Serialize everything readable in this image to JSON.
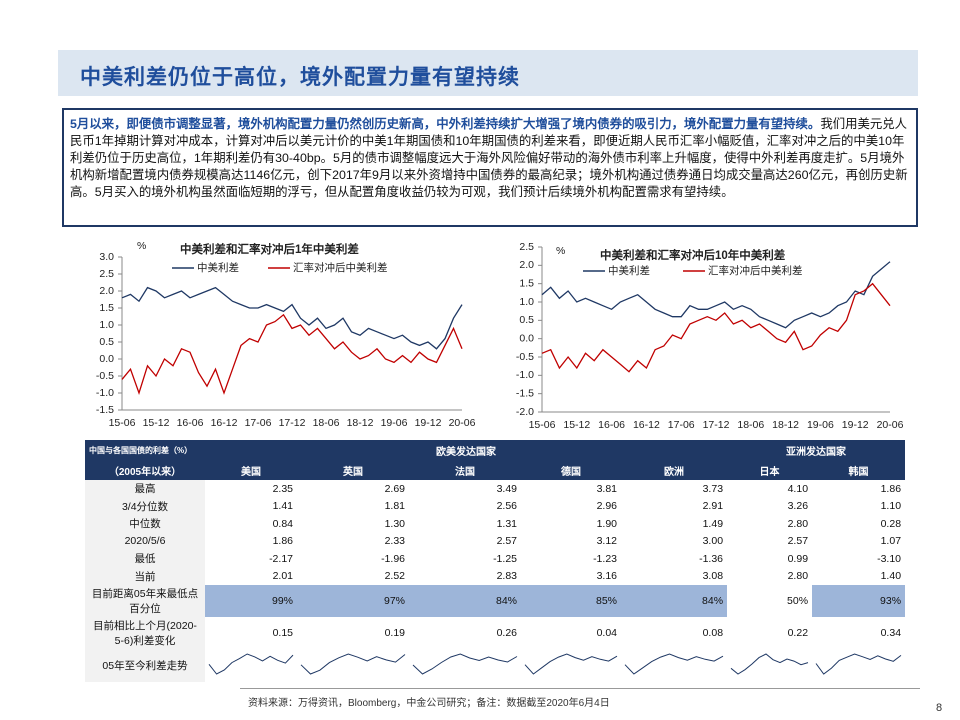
{
  "header": {
    "title": "中美利差仍位于高位，境外配置力量有望持续"
  },
  "summary": {
    "lead": "5月以来，即便债市调整显著，境外机构配置力量仍然创历史新高，中外利差持续扩大增强了境内债券的吸引力，境外配置力量有望持续。",
    "body": "我们用美元兑人民币1年掉期计算对冲成本，计算对冲后以美元计价的中美1年期国债和10年期国债的利差来看，即便近期人民币汇率小幅贬值，汇率对冲之后的中美10年利差仍位于历史高位，1年期利差仍有30-40bp。5月的债市调整幅度远大于海外风险偏好带动的海外债市利率上升幅度，使得中外利差再度走扩。5月境外机构新增配置境内债券规模高达1146亿元，创下2017年9月以来外资增持中国债券的最高纪录；境外机构通过债券通日均成交量高达260亿元，再创历史新高。5月买入的境外机构虽然面临短期的浮亏，但从配置角度收益仍较为可观，我们预计后续境外机构配置需求有望持续。"
  },
  "chart_data": [
    {
      "type": "line",
      "title": "中美利差和汇率对冲后1年中美利差",
      "y_unit": "%",
      "categories": [
        "15-06",
        null,
        null,
        null,
        "15-12",
        null,
        null,
        null,
        "16-06",
        null,
        null,
        null,
        "16-12",
        null,
        null,
        null,
        "17-06",
        null,
        null,
        null,
        "17-12",
        null,
        null,
        null,
        "18-06",
        null,
        null,
        null,
        "18-12",
        null,
        null,
        null,
        "19-06",
        null,
        null,
        null,
        "19-12",
        null,
        null,
        null,
        "20-06"
      ],
      "series": [
        {
          "name": "中美利差",
          "color": "#1f3864",
          "values": [
            1.8,
            1.9,
            1.7,
            2.1,
            2.0,
            1.8,
            1.9,
            2.0,
            1.8,
            1.9,
            2.0,
            2.1,
            1.9,
            1.7,
            1.6,
            1.5,
            1.5,
            1.6,
            1.5,
            1.4,
            1.6,
            1.2,
            1.0,
            1.2,
            0.9,
            1.0,
            1.2,
            0.8,
            0.7,
            0.9,
            0.8,
            0.7,
            0.6,
            0.7,
            0.5,
            0.4,
            0.5,
            0.3,
            0.6,
            1.2,
            1.6
          ]
        },
        {
          "name": "汇率对冲后中美利差",
          "color": "#c00000",
          "values": [
            -0.6,
            -0.3,
            -1.0,
            -0.2,
            -0.5,
            0.0,
            -0.2,
            0.3,
            0.2,
            -0.4,
            -0.8,
            -0.3,
            -1.0,
            -0.3,
            0.4,
            0.6,
            0.5,
            1.0,
            1.1,
            1.3,
            0.9,
            1.0,
            0.7,
            0.9,
            0.6,
            0.3,
            0.5,
            0.2,
            0.0,
            0.1,
            0.3,
            0.0,
            -0.1,
            0.1,
            -0.1,
            0.2,
            0.0,
            -0.1,
            0.4,
            0.9,
            0.3
          ]
        }
      ],
      "ylim": [
        -1.5,
        3
      ],
      "yticks": [
        -1.5,
        {
          "value": -1,
          "label": "-1.0"
        },
        -0.5,
        {
          "value": 0,
          "label": "0.0"
        },
        0.5,
        {
          "value": 1,
          "label": "1.0"
        },
        1.5,
        {
          "value": 2,
          "label": "2.0"
        },
        2.5,
        {
          "value": 3,
          "label": "3.0"
        }
      ]
    },
    {
      "type": "line",
      "title": "中美利差和汇率对冲后10年中美利差",
      "y_unit": "%",
      "categories": [
        "15-06",
        null,
        null,
        null,
        "15-12",
        null,
        null,
        null,
        "16-06",
        null,
        null,
        null,
        "16-12",
        null,
        null,
        null,
        "17-06",
        null,
        null,
        null,
        "17-12",
        null,
        null,
        null,
        "18-06",
        null,
        null,
        null,
        "18-12",
        null,
        null,
        null,
        "19-06",
        null,
        null,
        null,
        "19-12",
        null,
        null,
        null,
        "20-06"
      ],
      "series": [
        {
          "name": "中美利差",
          "color": "#1f3864",
          "values": [
            1.2,
            1.4,
            1.1,
            1.3,
            1.0,
            1.1,
            1.0,
            0.9,
            0.8,
            1.0,
            1.1,
            1.2,
            1.0,
            0.8,
            0.7,
            0.6,
            0.6,
            0.9,
            0.8,
            0.8,
            0.9,
            1.0,
            0.8,
            0.9,
            0.8,
            0.6,
            0.5,
            0.4,
            0.3,
            0.5,
            0.6,
            0.7,
            0.6,
            0.7,
            0.9,
            1.0,
            1.3,
            1.2,
            1.7,
            1.9,
            2.1
          ]
        },
        {
          "name": "汇率对冲后中美利差",
          "color": "#c00000",
          "values": [
            -0.4,
            -0.3,
            -0.8,
            -0.5,
            -0.8,
            -0.4,
            -0.6,
            -0.3,
            -0.5,
            -0.7,
            -0.9,
            -0.6,
            -0.8,
            -0.3,
            -0.2,
            0.1,
            0.0,
            0.4,
            0.5,
            0.6,
            0.5,
            0.7,
            0.4,
            0.5,
            0.3,
            0.4,
            0.2,
            0.0,
            -0.1,
            0.2,
            -0.3,
            -0.2,
            0.1,
            0.3,
            0.2,
            0.5,
            1.2,
            1.3,
            1.5,
            1.2,
            0.9
          ]
        }
      ],
      "ylim": [
        -2,
        2.5
      ],
      "yticks": [
        {
          "value": -2,
          "label": "-2.0"
        },
        -1.5,
        {
          "value": -1,
          "label": "-1.0"
        },
        -0.5,
        {
          "value": 0,
          "label": "0.0"
        },
        0.5,
        {
          "value": 1,
          "label": "1.0"
        },
        1.5,
        {
          "value": 2,
          "label": "2.0"
        },
        2.5
      ]
    }
  ],
  "table": {
    "title": "中国与各国国债的利差（%）",
    "period": "（2005年以来）",
    "highlight_color": "#9db5d9",
    "groups": [
      {
        "name": "欧美发达国家",
        "columns": [
          "美国",
          "英国",
          "法国",
          "德国",
          "欧洲"
        ]
      },
      {
        "name": "亚洲发达国家",
        "columns": [
          "日本",
          "韩国"
        ]
      }
    ],
    "rows": [
      {
        "label": "最高",
        "cells": [
          "2.35",
          "2.69",
          "3.49",
          "3.81",
          "3.73",
          "4.10",
          "1.86"
        ]
      },
      {
        "label": "3/4分位数",
        "cells": [
          "1.41",
          "1.81",
          "2.56",
          "2.96",
          "2.91",
          "3.26",
          "1.10"
        ]
      },
      {
        "label": "中位数",
        "cells": [
          "0.84",
          "1.30",
          "1.31",
          "1.90",
          "1.49",
          "2.80",
          "0.28"
        ]
      },
      {
        "label": "2020/5/6",
        "cells": [
          "1.86",
          "2.33",
          "2.57",
          "3.12",
          "3.00",
          "2.57",
          "1.07"
        ]
      },
      {
        "label": "最低",
        "cells": [
          "-2.17",
          "-1.96",
          "-1.25",
          "-1.23",
          "-1.36",
          "0.99",
          "-3.10"
        ]
      },
      {
        "label": "当前",
        "cells": [
          "2.01",
          "2.52",
          "2.83",
          "3.16",
          "3.08",
          "2.80",
          "1.40"
        ]
      },
      {
        "label": "目前距离05年来最低点百分位",
        "cells": [
          "99%",
          "97%",
          "84%",
          "85%",
          "84%",
          "50%",
          "93%"
        ],
        "highlighted": [
          true,
          true,
          true,
          true,
          true,
          false,
          true
        ]
      },
      {
        "label": "目前相比上个月(2020-5-6)利差变化",
        "cells": [
          "0.15",
          "0.19",
          "0.26",
          "0.04",
          "0.08",
          "0.22",
          "0.34"
        ]
      }
    ],
    "trend": {
      "label": "05年至今利差走势",
      "color": "#1f3864",
      "sparklines": [
        [
          0.2,
          -1.5,
          -0.8,
          0.5,
          1.2,
          2.0,
          1.5,
          0.8,
          1.6,
          0.9,
          0.4,
          1.8
        ],
        [
          0.5,
          -1.2,
          -0.5,
          0.9,
          1.8,
          2.5,
          1.9,
          1.2,
          2.0,
          1.4,
          1.0,
          2.4
        ],
        [
          1.0,
          -0.8,
          0.2,
          1.5,
          2.6,
          3.2,
          2.4,
          1.9,
          2.6,
          2.0,
          1.6,
          2.7
        ],
        [
          1.2,
          -0.9,
          0.5,
          1.9,
          2.9,
          3.6,
          2.8,
          2.2,
          3.0,
          2.4,
          2.0,
          3.1
        ],
        [
          1.1,
          -1.0,
          0.4,
          1.8,
          2.8,
          3.5,
          2.7,
          2.1,
          2.9,
          2.3,
          1.9,
          3.0
        ],
        [
          2.0,
          1.2,
          1.8,
          2.6,
          3.5,
          4.0,
          3.2,
          2.8,
          3.3,
          3.0,
          2.5,
          2.8
        ],
        [
          -0.5,
          -2.8,
          -1.5,
          0.2,
          0.9,
          1.6,
          1.0,
          0.4,
          1.2,
          0.5,
          0.0,
          1.3
        ]
      ]
    }
  },
  "footer": "资料来源：万得资讯，Bloomberg，中金公司研究；备注：数据截至2020年6月4日",
  "page_number": "8"
}
